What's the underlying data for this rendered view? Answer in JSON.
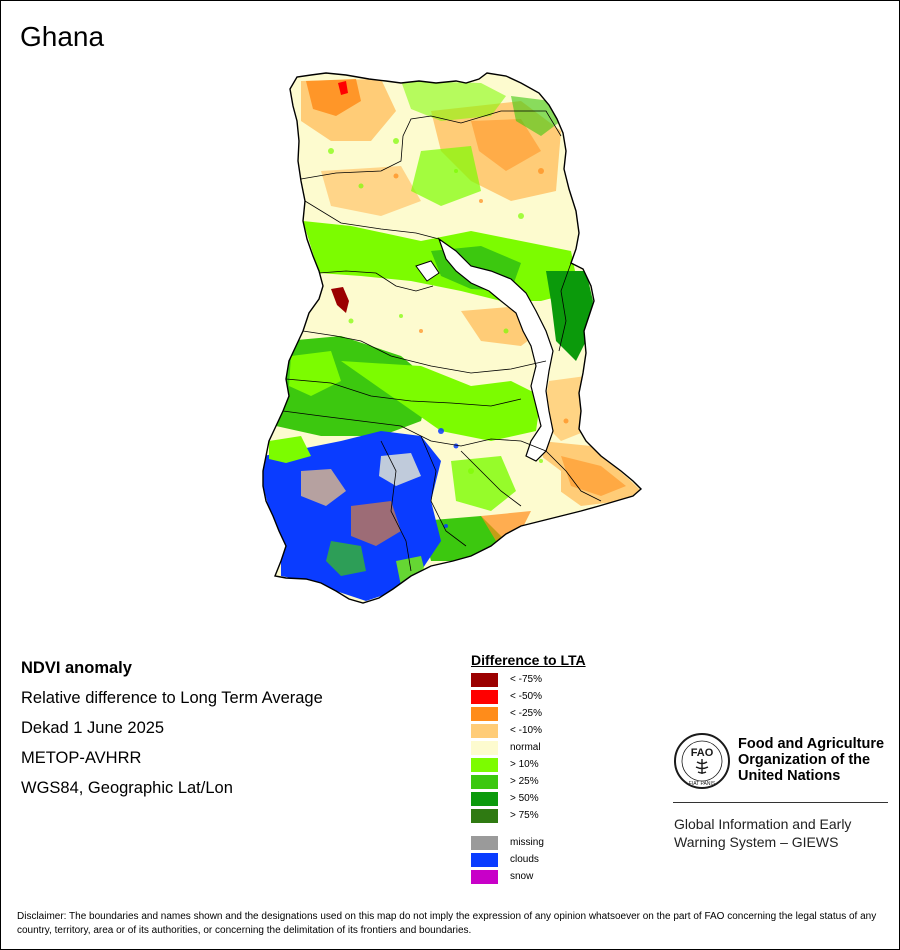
{
  "title": "Ghana",
  "info": {
    "line1": "NDVI anomaly",
    "line2": "Relative difference to Long Term Average",
    "line3": "Dekad 1 June 2025",
    "line4": "METOP-AVHRR",
    "line5": "WGS84, Geographic Lat/Lon"
  },
  "legend": {
    "title": "Difference to LTA",
    "classes": [
      {
        "label": "< -75%",
        "color": "#9b0000"
      },
      {
        "label": "< -50%",
        "color": "#ff0000"
      },
      {
        "label": "< -25%",
        "color": "#ff8c1a"
      },
      {
        "label": "< -10%",
        "color": "#ffcc77"
      },
      {
        "label": "normal",
        "color": "#fdfbcf"
      },
      {
        "label": "> 10%",
        "color": "#7cfc00"
      },
      {
        "label": "> 25%",
        "color": "#3cc80f"
      },
      {
        "label": "> 50%",
        "color": "#0b9a0b"
      },
      {
        "label": "> 75%",
        "color": "#2f7a12"
      }
    ],
    "other": [
      {
        "label": "missing",
        "color": "#9a9a9a"
      },
      {
        "label": "clouds",
        "color": "#0a3cff"
      },
      {
        "label": "snow",
        "color": "#c800c8"
      }
    ]
  },
  "organization": {
    "name_line1": "Food and Agriculture",
    "name_line2": "Organization of the",
    "name_line3": "United Nations",
    "logo_text": "FAO",
    "logo_motto": "FIAT PANIS",
    "system_line1": "Global Information and Early",
    "system_line2": "Warning System – GIEWS"
  },
  "disclaimer": "Disclaimer: The boundaries and names shown and the designations used on this map do not imply the expression of any opinion whatsoever on the part of FAO concerning the legal status of any country, territory, area or of its authorities, or concerning the delimitation of its frontiers and boundaries."
}
